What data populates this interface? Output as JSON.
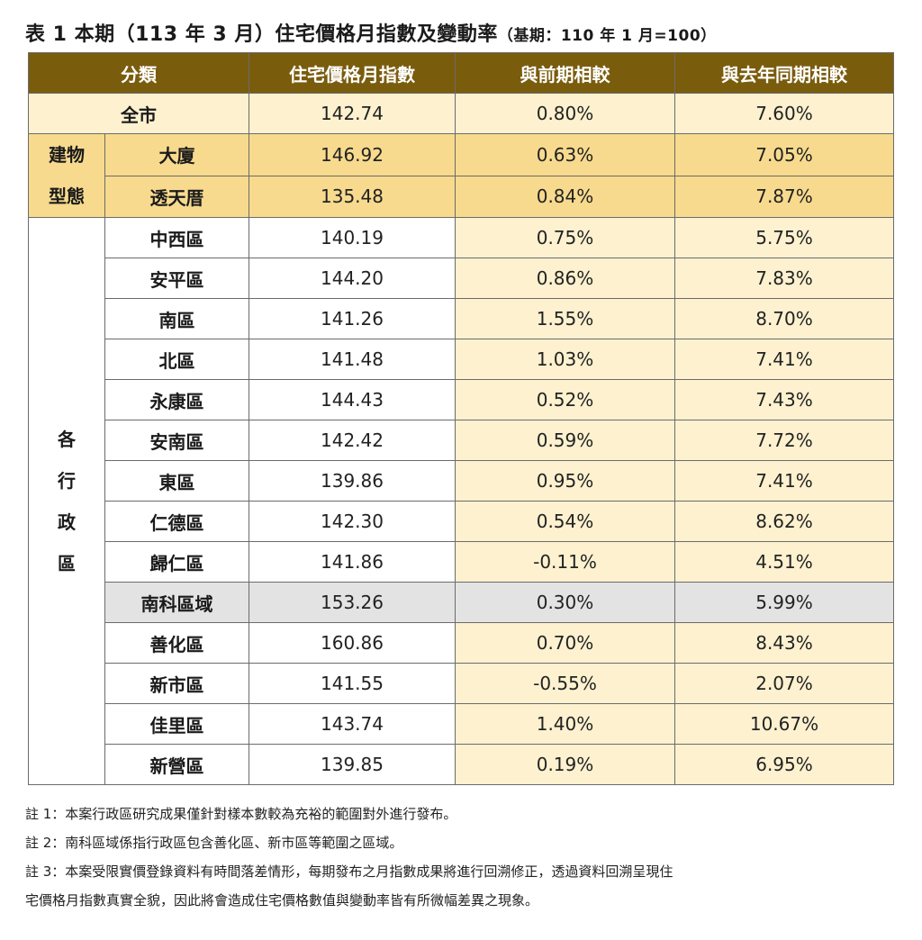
{
  "title": {
    "main": "表 1 本期（113 年 3 月）住宅價格月指數及變動率",
    "sub": "（基期：110 年 1 月=100）"
  },
  "headers": [
    "分類",
    "住宅價格月指數",
    "與前期相較",
    "與去年同期相較"
  ],
  "citywide": {
    "label": "全市",
    "index": "142.74",
    "mom": "0.80%",
    "yoy": "7.60%"
  },
  "building_type": {
    "group_label": [
      "建物",
      "型態"
    ],
    "rows": [
      {
        "label": "大廈",
        "index": "146.92",
        "mom": "0.63%",
        "yoy": "7.05%"
      },
      {
        "label": "透天厝",
        "index": "135.48",
        "mom": "0.84%",
        "yoy": "7.87%"
      }
    ]
  },
  "districts": {
    "group_label": [
      "各",
      "行",
      "政",
      "區"
    ],
    "rows": [
      {
        "label": "中西區",
        "index": "140.19",
        "mom": "0.75%",
        "yoy": "5.75%"
      },
      {
        "label": "安平區",
        "index": "144.20",
        "mom": "0.86%",
        "yoy": "7.83%"
      },
      {
        "label": "南區",
        "index": "141.26",
        "mom": "1.55%",
        "yoy": "8.70%"
      },
      {
        "label": "北區",
        "index": "141.48",
        "mom": "1.03%",
        "yoy": "7.41%"
      },
      {
        "label": "永康區",
        "index": "144.43",
        "mom": "0.52%",
        "yoy": "7.43%"
      },
      {
        "label": "安南區",
        "index": "142.42",
        "mom": "0.59%",
        "yoy": "7.72%"
      },
      {
        "label": "東區",
        "index": "139.86",
        "mom": "0.95%",
        "yoy": "7.41%"
      },
      {
        "label": "仁德區",
        "index": "142.30",
        "mom": "0.54%",
        "yoy": "8.62%"
      },
      {
        "label": "歸仁區",
        "index": "141.86",
        "mom": "-0.11%",
        "yoy": "4.51%"
      },
      {
        "label": "南科區域",
        "index": "153.26",
        "mom": "0.30%",
        "yoy": "5.99%"
      },
      {
        "label": "善化區",
        "index": "160.86",
        "mom": "0.70%",
        "yoy": "8.43%"
      },
      {
        "label": "新市區",
        "index": "141.55",
        "mom": "-0.55%",
        "yoy": "2.07%"
      },
      {
        "label": "佳里區",
        "index": "143.74",
        "mom": "1.40%",
        "yoy": "10.67%"
      },
      {
        "label": "新營區",
        "index": "139.85",
        "mom": "0.19%",
        "yoy": "6.95%"
      }
    ]
  },
  "notes": [
    "註 1：本案行政區研究成果僅針對樣本數較為充裕的範圍對外進行發布。",
    "註 2：南科區域係指行政區包含善化區、新市區等範圍之區域。",
    "註 3：本案受限實價登錄資料有時間落差情形，每期發布之月指數成果將進行回溯修正，透過資料回溯呈現住",
    "宅價格月指數真實全貌，因此將會造成住宅價格數值與變動率皆有所微幅差異之現象。"
  ],
  "colors": {
    "header_bg": "#7a5c0d",
    "row_light": "#fdf1cf",
    "row_gold": "#f7da8e",
    "row_highlight_gray": "#e3e3e3"
  }
}
